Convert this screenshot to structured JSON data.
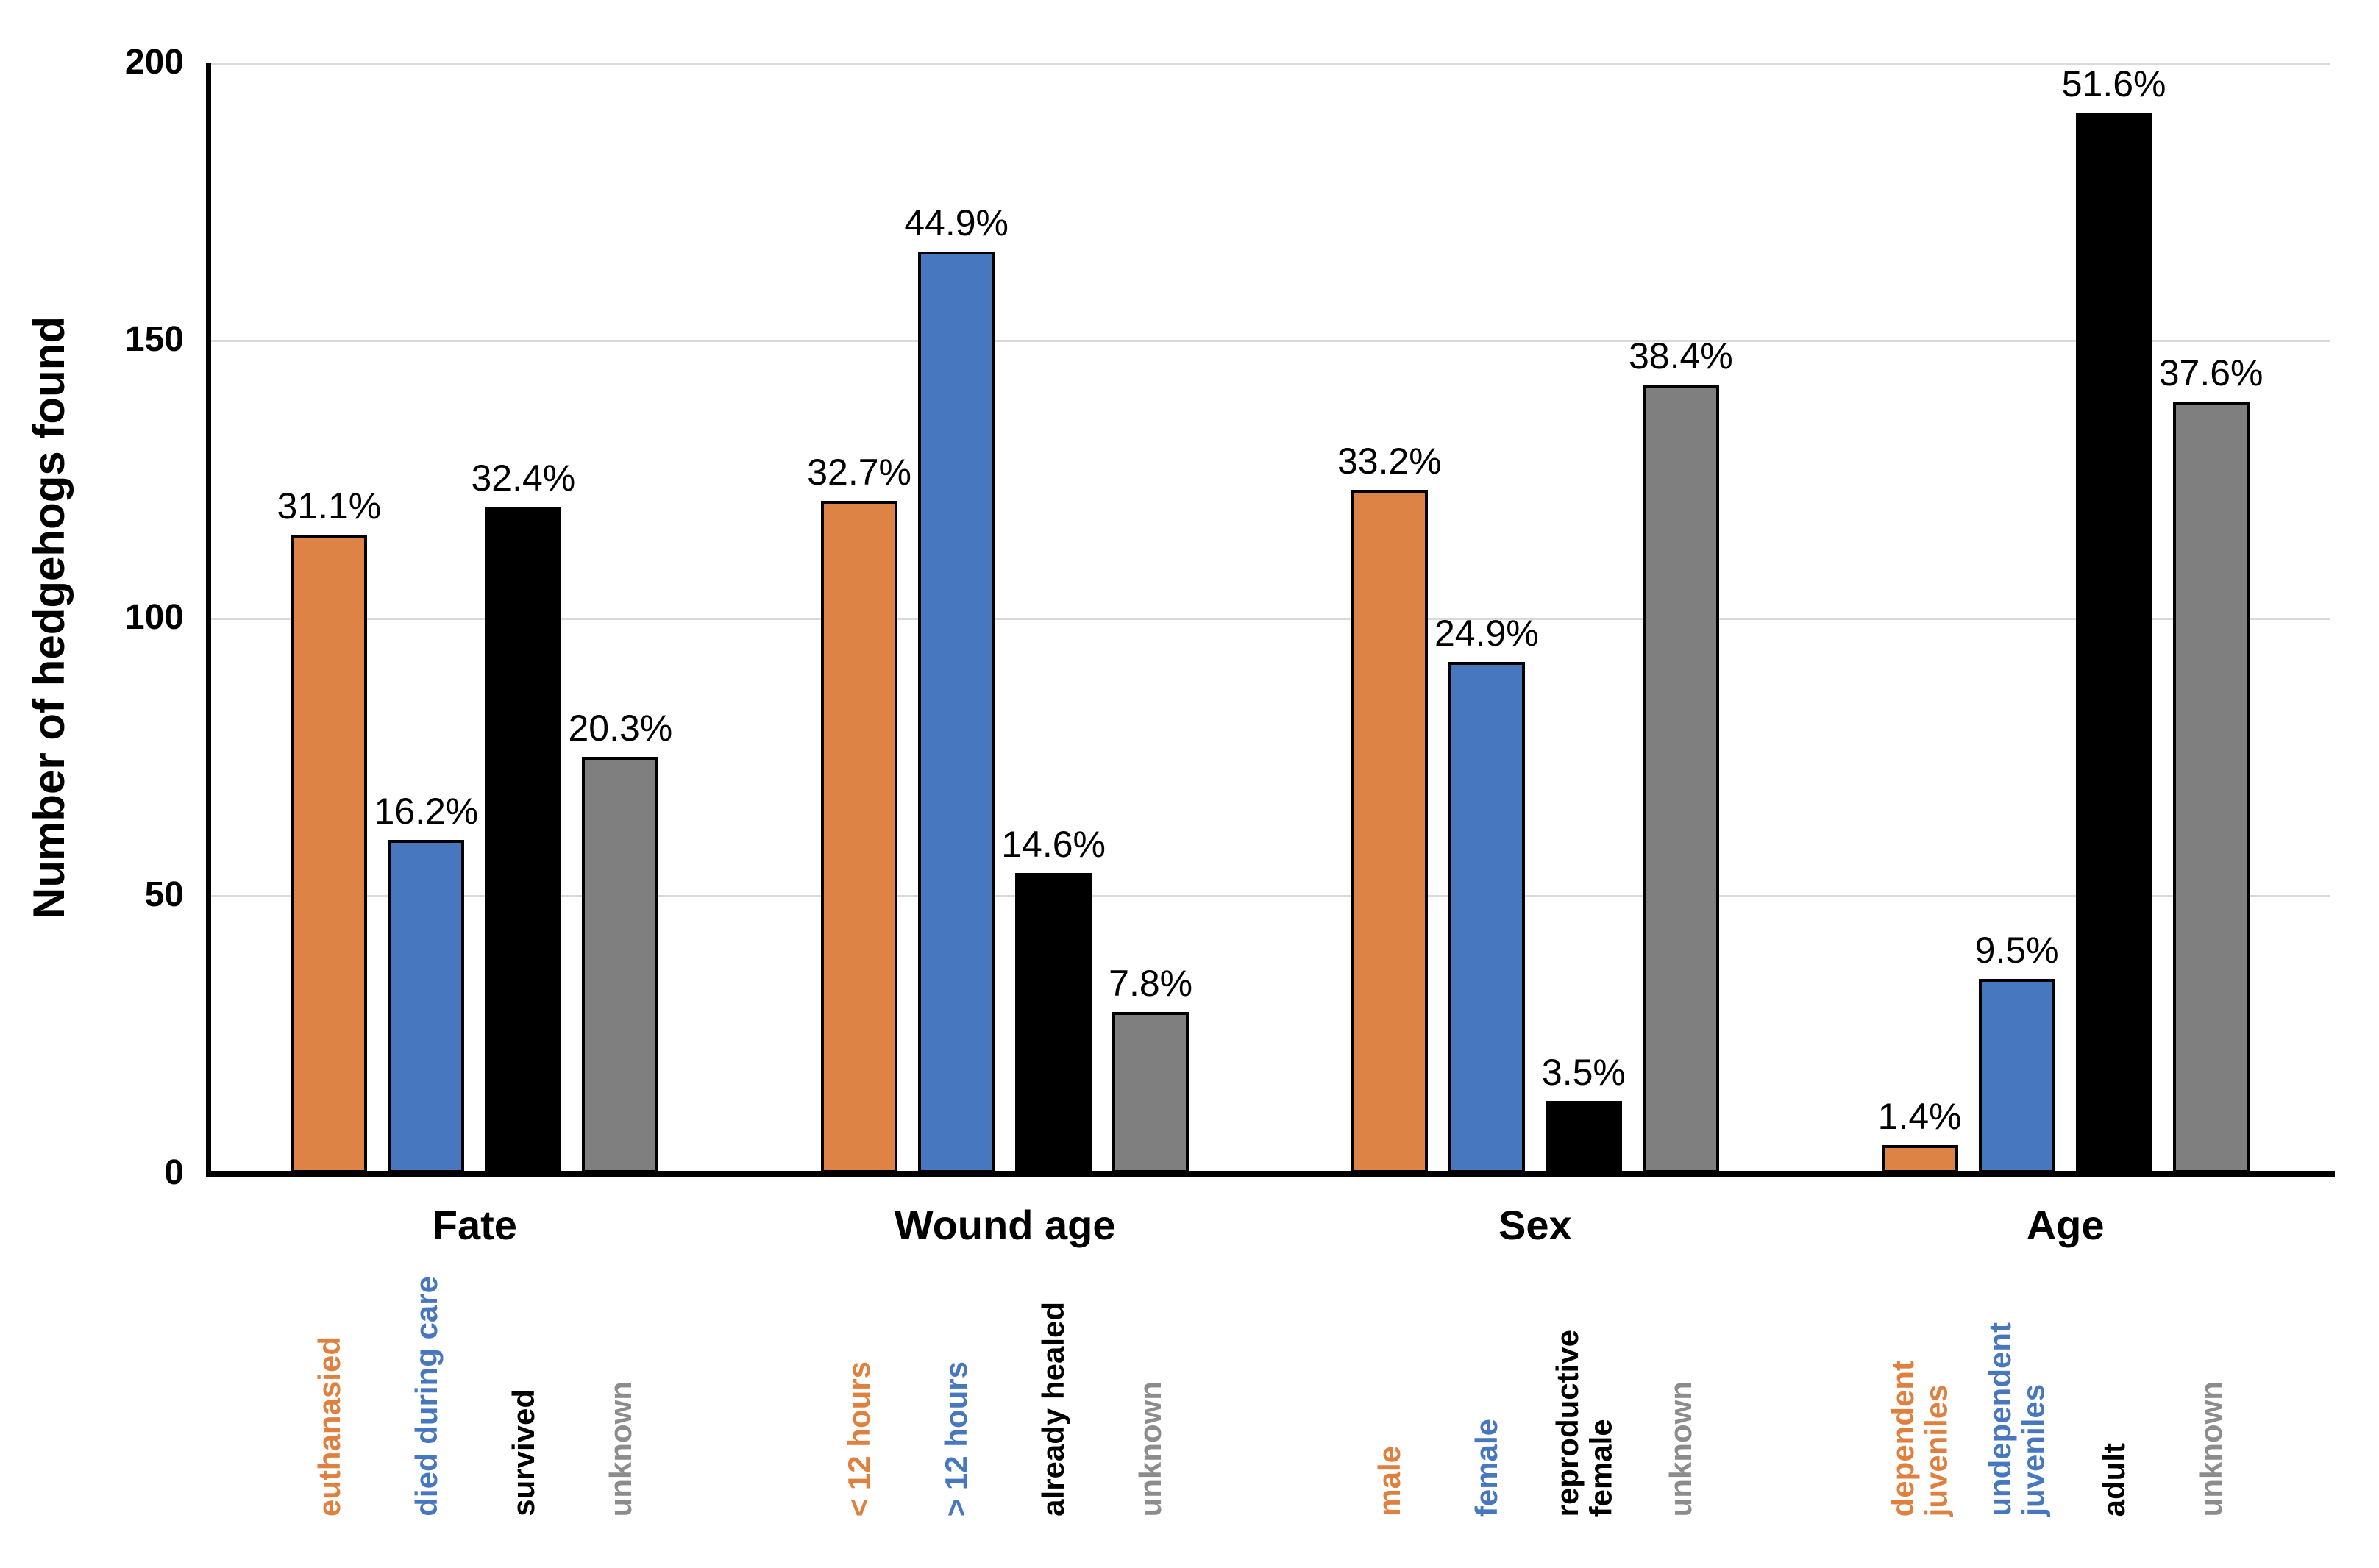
{
  "chart_data": {
    "type": "bar",
    "title": "",
    "ylabel": "Number of hedgehogs found",
    "xlabel": "",
    "ylim": [
      0,
      200
    ],
    "yticks_top_down": [
      "200",
      "150",
      "100",
      "50",
      "0"
    ],
    "grid": true,
    "legend": "none",
    "colors": {
      "orange": "#dd8346",
      "blue": "#4677bf",
      "black": "#000000",
      "gray": "#7f7f7f"
    },
    "label_colors": {
      "orange": "#e0803e",
      "blue": "#4677bf",
      "black": "#000000",
      "gray": "#8c8c8c"
    },
    "groups": [
      {
        "title": "Fate",
        "bars": [
          {
            "label": "euthanasied",
            "color": "orange",
            "count": 115,
            "pct_label": "31.1%"
          },
          {
            "label": "died during care",
            "color": "blue",
            "count": 60,
            "pct_label": "16.2%"
          },
          {
            "label": "survived",
            "color": "black",
            "count": 120,
            "pct_label": "32.4%"
          },
          {
            "label": "unknown",
            "color": "gray",
            "count": 75,
            "pct_label": "20.3%"
          }
        ]
      },
      {
        "title": "Wound age",
        "bars": [
          {
            "label": "< 12 hours",
            "color": "orange",
            "count": 121,
            "pct_label": "32.7%"
          },
          {
            "label": "> 12 hours",
            "color": "blue",
            "count": 166,
            "pct_label": "44.9%"
          },
          {
            "label": "already healed",
            "color": "black",
            "count": 54,
            "pct_label": "14.6%"
          },
          {
            "label": "unknown",
            "color": "gray",
            "count": 29,
            "pct_label": "7.8%"
          }
        ]
      },
      {
        "title": "Sex",
        "bars": [
          {
            "label": "male",
            "color": "orange",
            "count": 123,
            "pct_label": "33.2%"
          },
          {
            "label": "female",
            "color": "blue",
            "count": 92,
            "pct_label": "24.9%"
          },
          {
            "label": "reproductive\nfemale",
            "color": "black",
            "count": 13,
            "pct_label": "3.5%"
          },
          {
            "label": "unknown",
            "color": "gray",
            "count": 142,
            "pct_label": "38.4%"
          }
        ]
      },
      {
        "title": "Age",
        "bars": [
          {
            "label": "dependent\njuveniles",
            "color": "orange",
            "count": 5,
            "pct_label": "1.4%"
          },
          {
            "label": "undependent\njuveniles",
            "color": "blue",
            "count": 35,
            "pct_label": "9.5%"
          },
          {
            "label": "adult",
            "color": "black",
            "count": 191,
            "pct_label": "51.6%"
          },
          {
            "label": "unknown",
            "color": "gray",
            "count": 139,
            "pct_label": "37.6%"
          }
        ]
      }
    ]
  }
}
